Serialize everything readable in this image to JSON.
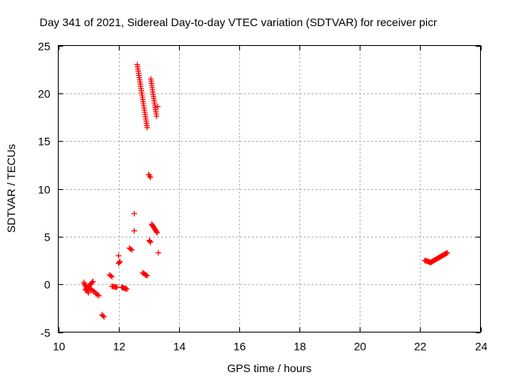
{
  "chart_data": {
    "type": "scatter",
    "title": "Day 341 of 2021, Sidereal Day-to-day VTEC variation (SDTVAR) for receiver picr",
    "xlabel": "GPS time / hours",
    "ylabel": "SDTVAR / TECUs",
    "xlim": [
      10,
      24
    ],
    "ylim": [
      -5,
      25
    ],
    "xticks": [
      10,
      12,
      14,
      16,
      18,
      20,
      22,
      24
    ],
    "yticks": [
      -5,
      0,
      5,
      10,
      15,
      20,
      25
    ],
    "grid": true,
    "marker": "+",
    "color": "#ff0000",
    "segments": [
      {
        "x0": 10.85,
        "x1": 11.0,
        "y0": 0.2,
        "y1": -0.9,
        "n": 8
      },
      {
        "x0": 10.9,
        "x1": 11.15,
        "y0": -0.6,
        "y1": 0.3,
        "n": 10
      },
      {
        "x0": 11.0,
        "x1": 11.25,
        "y0": -0.3,
        "y1": -0.9,
        "n": 6
      },
      {
        "x0": 11.25,
        "x1": 11.35,
        "y0": -1.0,
        "y1": -1.2,
        "n": 3
      },
      {
        "x0": 11.45,
        "x1": 11.52,
        "y0": -3.2,
        "y1": -3.4,
        "n": 3
      },
      {
        "x0": 11.7,
        "x1": 11.78,
        "y0": 1.0,
        "y1": 0.8,
        "n": 3
      },
      {
        "x0": 11.78,
        "x1": 11.95,
        "y0": -0.2,
        "y1": -0.3,
        "n": 6
      },
      {
        "x0": 12.0,
        "x1": 12.05,
        "y0": 2.2,
        "y1": 2.4,
        "n": 3
      },
      {
        "x0": 12.1,
        "x1": 12.28,
        "y0": -0.3,
        "y1": -0.5,
        "n": 7
      },
      {
        "x0": 12.36,
        "x1": 12.44,
        "y0": 3.8,
        "y1": 3.6,
        "n": 3
      },
      {
        "x0": 12.62,
        "x1": 12.95,
        "y0": 23.0,
        "y1": 16.4,
        "n": 30
      },
      {
        "x0": 12.8,
        "x1": 12.95,
        "y0": 1.2,
        "y1": 0.9,
        "n": 6
      },
      {
        "x0": 13.0,
        "x1": 13.06,
        "y0": 11.5,
        "y1": 11.2,
        "n": 3
      },
      {
        "x0": 13.02,
        "x1": 13.06,
        "y0": 4.6,
        "y1": 4.4,
        "n": 3
      },
      {
        "x0": 13.07,
        "x1": 13.26,
        "y0": 21.5,
        "y1": 17.6,
        "n": 18
      },
      {
        "x0": 13.1,
        "x1": 13.28,
        "y0": 6.3,
        "y1": 5.4,
        "n": 10
      },
      {
        "x0": 22.15,
        "x1": 22.35,
        "y0": 2.5,
        "y1": 2.3,
        "n": 8
      },
      {
        "x0": 22.35,
        "x1": 22.9,
        "y0": 2.3,
        "y1": 3.3,
        "n": 22
      }
    ],
    "points": [
      {
        "x": 12.52,
        "y": 7.4
      },
      {
        "x": 12.52,
        "y": 5.6
      },
      {
        "x": 12.0,
        "y": 3.0
      },
      {
        "x": 13.3,
        "y": 18.6
      },
      {
        "x": 13.32,
        "y": 3.3
      },
      {
        "x": 11.1,
        "y": -0.6
      }
    ]
  }
}
